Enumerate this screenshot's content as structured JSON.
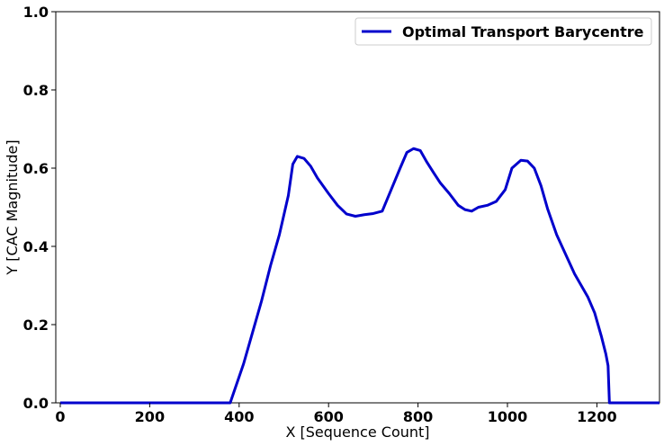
{
  "chart_data": {
    "type": "line",
    "title": "",
    "xlabel": "X [Sequence Count]",
    "ylabel": "Y [CAC Magnitude]",
    "xlim": [
      -10,
      1340
    ],
    "ylim": [
      0.0,
      1.0
    ],
    "xticks": [
      0,
      200,
      400,
      600,
      800,
      1000,
      1200
    ],
    "xtick_labels": [
      "0",
      "200",
      "400",
      "600",
      "800",
      "1000",
      "1200"
    ],
    "yticks": [
      0.0,
      0.2,
      0.4,
      0.6,
      0.8,
      1.0
    ],
    "ytick_labels": [
      "0.0",
      "0.2",
      "0.4",
      "0.6",
      "0.8",
      "1.0"
    ],
    "grid": false,
    "legend_position": "top-right",
    "series": [
      {
        "name": "Optimal Transport Barycentre",
        "color": "#0000CC",
        "x": [
          0,
          50,
          100,
          200,
          300,
          360,
          380,
          395,
          410,
          430,
          450,
          470,
          490,
          510,
          520,
          530,
          545,
          560,
          575,
          600,
          620,
          640,
          660,
          680,
          700,
          720,
          740,
          760,
          775,
          790,
          805,
          820,
          835,
          850,
          870,
          890,
          905,
          920,
          935,
          955,
          975,
          995,
          1010,
          1030,
          1045,
          1060,
          1075,
          1090,
          1110,
          1130,
          1150,
          1165,
          1180,
          1195,
          1210,
          1220,
          1225,
          1228,
          1230,
          1240,
          1280,
          1340
        ],
        "y": [
          0,
          0,
          0,
          0,
          0,
          0,
          0,
          0.05,
          0.1,
          0.18,
          0.26,
          0.35,
          0.43,
          0.53,
          0.61,
          0.63,
          0.625,
          0.605,
          0.575,
          0.535,
          0.505,
          0.483,
          0.477,
          0.481,
          0.484,
          0.49,
          0.545,
          0.6,
          0.64,
          0.65,
          0.645,
          0.615,
          0.588,
          0.562,
          0.535,
          0.505,
          0.494,
          0.49,
          0.5,
          0.505,
          0.515,
          0.545,
          0.6,
          0.62,
          0.618,
          0.6,
          0.555,
          0.495,
          0.43,
          0.38,
          0.33,
          0.3,
          0.27,
          0.23,
          0.17,
          0.125,
          0.095,
          0.0,
          0.0,
          0,
          0,
          0
        ]
      }
    ]
  }
}
